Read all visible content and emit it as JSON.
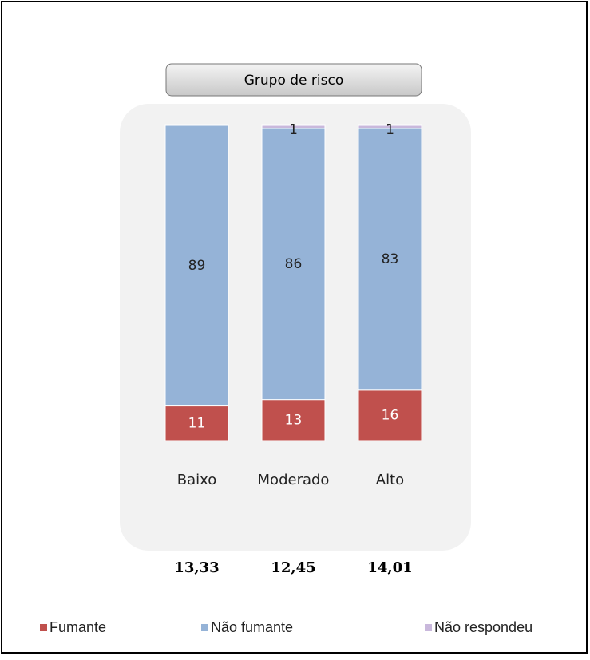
{
  "chart_data": {
    "type": "stacked-bar",
    "title": "Grupo de risco",
    "categories": [
      "Baixo",
      "Moderado",
      "Alto"
    ],
    "series": [
      {
        "name": "Fumante",
        "color": "#c0504d",
        "values": [
          11,
          13,
          16
        ]
      },
      {
        "name": "Não fumante",
        "color": "#95b3d7",
        "values": [
          89,
          86,
          83
        ]
      },
      {
        "name": "Não respondeu",
        "color": "#c9b8dc",
        "values": [
          null,
          1,
          1
        ]
      }
    ],
    "footer_labels": [
      "13,33",
      "12,45",
      "14,01"
    ],
    "ylim": [
      0,
      100
    ]
  }
}
